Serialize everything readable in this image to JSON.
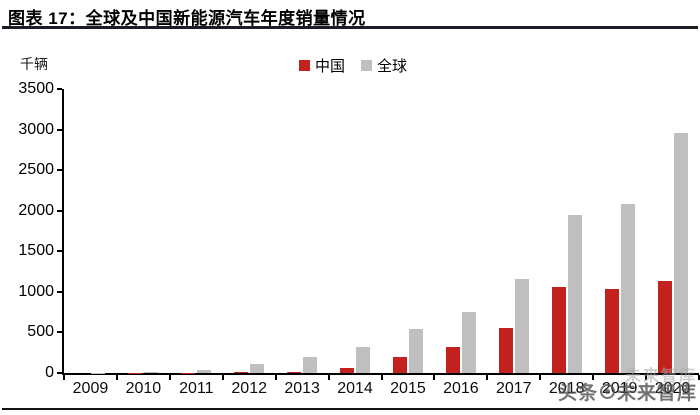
{
  "header": {
    "title": "图表 17：全球及中国新能源汽车年度销量情况"
  },
  "chart_data": {
    "type": "bar",
    "title": "全球及中国新能源汽车年度销量情况",
    "unit_label": "千辆",
    "xlabel": "",
    "ylabel": "千辆",
    "ylim": [
      0,
      3500
    ],
    "ytick_step": 500,
    "grid": false,
    "legend_position": "top-center",
    "categories": [
      "2009",
      "2010",
      "2011",
      "2012",
      "2013",
      "2014",
      "2015",
      "2016",
      "2017",
      "2018",
      "2019",
      "2020"
    ],
    "series": [
      {
        "name": "中国",
        "color": "#c2211d",
        "values": [
          0,
          1,
          5,
          12,
          18,
          65,
          200,
          320,
          555,
          1055,
          1030,
          1140
        ]
      },
      {
        "name": "全球",
        "color": "#bfbfbf",
        "values": [
          2,
          8,
          38,
          105,
          200,
          320,
          540,
          750,
          1160,
          1950,
          2080,
          2960
        ]
      }
    ]
  },
  "watermark": {
    "ghost_text": "未来智库",
    "prefix": "头条",
    "text": "未来智库",
    "logo_icon": "circle-logo"
  },
  "colors": {
    "china_red": "#c2211d",
    "global_gray": "#bfbfbf",
    "rule_dark": "#1c1c24"
  }
}
